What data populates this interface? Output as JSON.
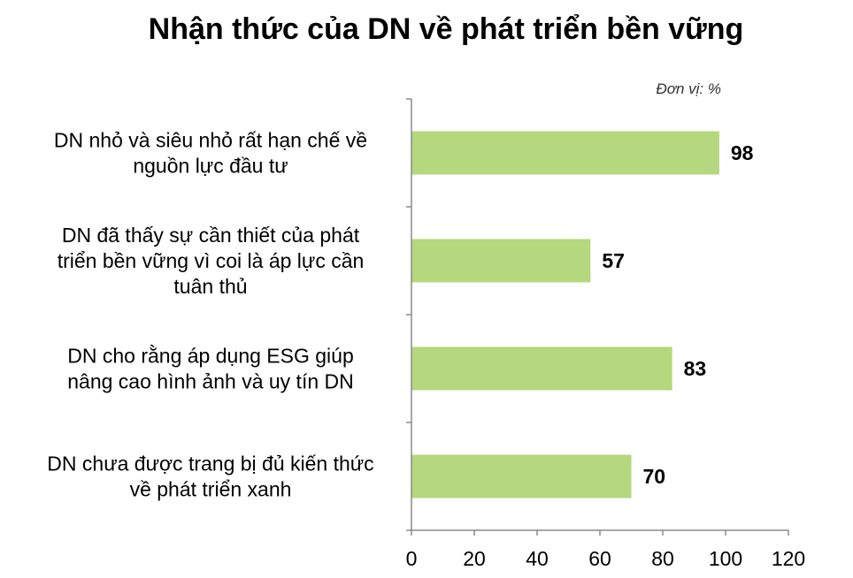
{
  "chart_data": {
    "type": "bar",
    "orientation": "horizontal",
    "title": "Nhận thức của DN về phát triển bền vững",
    "unit_label": "Đơn vị: %",
    "categories": [
      [
        "DN nhỏ và siêu nhỏ rất hạn chế về",
        "nguồn lực đầu tư"
      ],
      [
        "DN đã thấy sự cần thiết của phát",
        "triển bền vững vì coi là áp lực cần",
        "tuân thủ"
      ],
      [
        "DN cho rằng áp dụng ESG giúp",
        "nâng cao hình ảnh và uy tín DN"
      ],
      [
        "DN chưa được trang bị đủ kiến thức",
        "về phát triển xanh"
      ]
    ],
    "values": [
      98,
      57,
      83,
      70
    ],
    "data_labels": [
      "98",
      "57",
      "83",
      "70"
    ],
    "xlim": [
      0,
      120
    ],
    "x_ticks": [
      0,
      20,
      40,
      60,
      80,
      100,
      120
    ],
    "x_tick_labels": [
      "0",
      "20",
      "40",
      "60",
      "80",
      "100",
      "120"
    ],
    "bar_color": "#b5d77e",
    "axis_color": "#8a8a8a",
    "grid": false,
    "legend": "none"
  }
}
